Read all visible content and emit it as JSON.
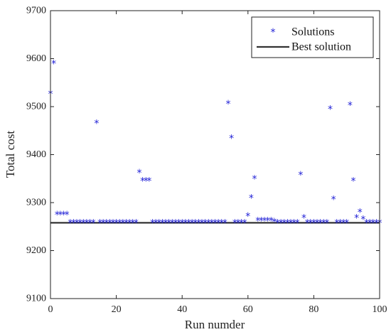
{
  "chart_data": {
    "type": "scatter",
    "xlabel": "Run numder",
    "ylabel": "Total cost",
    "xlim": [
      0,
      100
    ],
    "ylim": [
      9100,
      9700
    ],
    "xticks": [
      0,
      20,
      40,
      60,
      80,
      100
    ],
    "yticks": [
      9100,
      9200,
      9300,
      9400,
      9500,
      9600,
      9700
    ],
    "legend_position": "top-right",
    "grid": false,
    "series": [
      {
        "name": "Solutions",
        "marker": "*",
        "color": "#1f1fd6",
        "points": [
          [
            0,
            9527
          ],
          [
            1,
            9590
          ],
          [
            2,
            9275
          ],
          [
            3,
            9275
          ],
          [
            4,
            9275
          ],
          [
            5,
            9275
          ],
          [
            6,
            9258
          ],
          [
            7,
            9258
          ],
          [
            8,
            9258
          ],
          [
            9,
            9258
          ],
          [
            10,
            9258
          ],
          [
            11,
            9258
          ],
          [
            12,
            9258
          ],
          [
            13,
            9258
          ],
          [
            14,
            9465
          ],
          [
            15,
            9258
          ],
          [
            16,
            9258
          ],
          [
            17,
            9258
          ],
          [
            18,
            9258
          ],
          [
            19,
            9258
          ],
          [
            20,
            9258
          ],
          [
            21,
            9258
          ],
          [
            22,
            9258
          ],
          [
            23,
            9258
          ],
          [
            24,
            9258
          ],
          [
            25,
            9258
          ],
          [
            26,
            9258
          ],
          [
            27,
            9362
          ],
          [
            28,
            9345
          ],
          [
            29,
            9345
          ],
          [
            30,
            9345
          ],
          [
            31,
            9258
          ],
          [
            32,
            9258
          ],
          [
            33,
            9258
          ],
          [
            34,
            9258
          ],
          [
            35,
            9258
          ],
          [
            36,
            9258
          ],
          [
            37,
            9258
          ],
          [
            38,
            9258
          ],
          [
            39,
            9258
          ],
          [
            40,
            9258
          ],
          [
            41,
            9258
          ],
          [
            42,
            9258
          ],
          [
            43,
            9258
          ],
          [
            44,
            9258
          ],
          [
            45,
            9258
          ],
          [
            46,
            9258
          ],
          [
            47,
            9258
          ],
          [
            48,
            9258
          ],
          [
            49,
            9258
          ],
          [
            50,
            9258
          ],
          [
            51,
            9258
          ],
          [
            52,
            9258
          ],
          [
            53,
            9258
          ],
          [
            54,
            9506
          ],
          [
            55,
            9434
          ],
          [
            56,
            9258
          ],
          [
            57,
            9258
          ],
          [
            58,
            9258
          ],
          [
            59,
            9258
          ],
          [
            60,
            9272
          ],
          [
            61,
            9310
          ],
          [
            62,
            9350
          ],
          [
            63,
            9262
          ],
          [
            64,
            9262
          ],
          [
            65,
            9262
          ],
          [
            66,
            9262
          ],
          [
            67,
            9262
          ],
          [
            68,
            9260
          ],
          [
            69,
            9258
          ],
          [
            70,
            9258
          ],
          [
            71,
            9258
          ],
          [
            72,
            9258
          ],
          [
            73,
            9258
          ],
          [
            74,
            9258
          ],
          [
            75,
            9258
          ],
          [
            76,
            9358
          ],
          [
            77,
            9268
          ],
          [
            78,
            9258
          ],
          [
            79,
            9258
          ],
          [
            80,
            9258
          ],
          [
            81,
            9258
          ],
          [
            82,
            9258
          ],
          [
            83,
            9258
          ],
          [
            84,
            9258
          ],
          [
            85,
            9495
          ],
          [
            86,
            9307
          ],
          [
            87,
            9258
          ],
          [
            88,
            9258
          ],
          [
            89,
            9258
          ],
          [
            90,
            9258
          ],
          [
            91,
            9503
          ],
          [
            92,
            9345
          ],
          [
            93,
            9268
          ],
          [
            94,
            9280
          ],
          [
            95,
            9265
          ],
          [
            96,
            9258
          ],
          [
            97,
            9258
          ],
          [
            98,
            9258
          ],
          [
            99,
            9258
          ],
          [
            100,
            9258
          ]
        ]
      },
      {
        "name": "Best solution",
        "type": "line",
        "color": "#333333",
        "y": 9258,
        "x_range": [
          0,
          100
        ]
      }
    ]
  }
}
